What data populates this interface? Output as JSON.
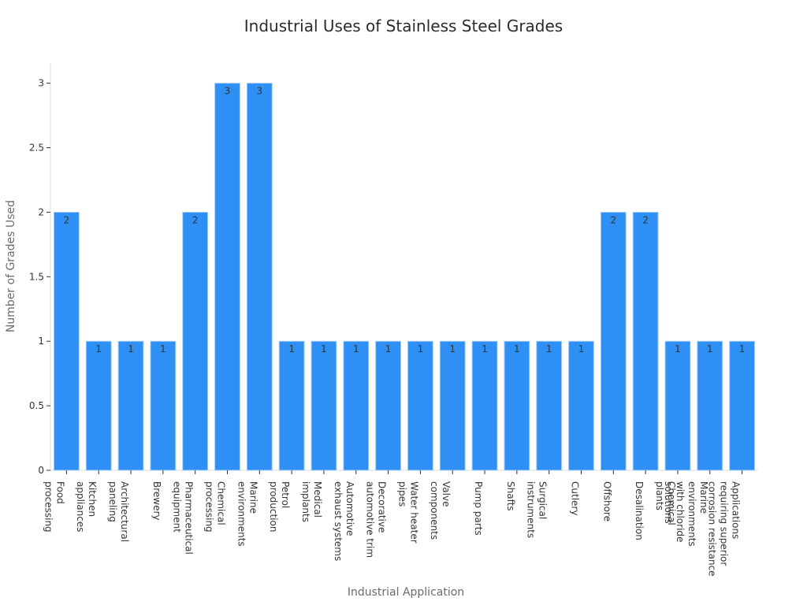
{
  "chart_data": {
    "type": "bar",
    "title": "Industrial Uses of Stainless Steel Grades",
    "xlabel": "Industrial Application",
    "ylabel": "Number of Grades Used",
    "ylim": [
      0,
      3.15
    ],
    "yticks": [
      "0",
      "0.5",
      "1",
      "1.5",
      "2",
      "2.5",
      "3"
    ],
    "grid": false,
    "bar_color": "#2e8ff5",
    "categories": [
      [
        "Food",
        "processing"
      ],
      [
        "Kitchen",
        "appliances"
      ],
      [
        "Architectural",
        "paneling"
      ],
      [
        "Brewery"
      ],
      [
        "Pharmaceutical",
        "equipment"
      ],
      [
        "Chemical",
        "processing"
      ],
      [
        "Marine",
        "environments"
      ],
      [
        "Petrol",
        "production"
      ],
      [
        "Medical",
        "implants"
      ],
      [
        "Automotive",
        "exhaust systems"
      ],
      [
        "Decorative",
        "automotive trim"
      ],
      [
        "Water heater",
        "pipes"
      ],
      [
        "Valve",
        "components"
      ],
      [
        "Pump parts"
      ],
      [
        "Shafts"
      ],
      [
        "Surgical",
        "instruments"
      ],
      [
        "Cutlery"
      ],
      [
        "Offshore"
      ],
      [
        "Desalination"
      ],
      [
        "Chemical",
        "plants"
      ],
      [
        "Marine",
        "environments",
        "with chloride",
        "solutions"
      ],
      [
        "Applications",
        "requiring superior",
        "corrosion resistance"
      ]
    ],
    "values": [
      2,
      1,
      1,
      1,
      2,
      3,
      3,
      1,
      1,
      1,
      1,
      1,
      1,
      1,
      1,
      1,
      1,
      2,
      2,
      1,
      1,
      1
    ]
  }
}
